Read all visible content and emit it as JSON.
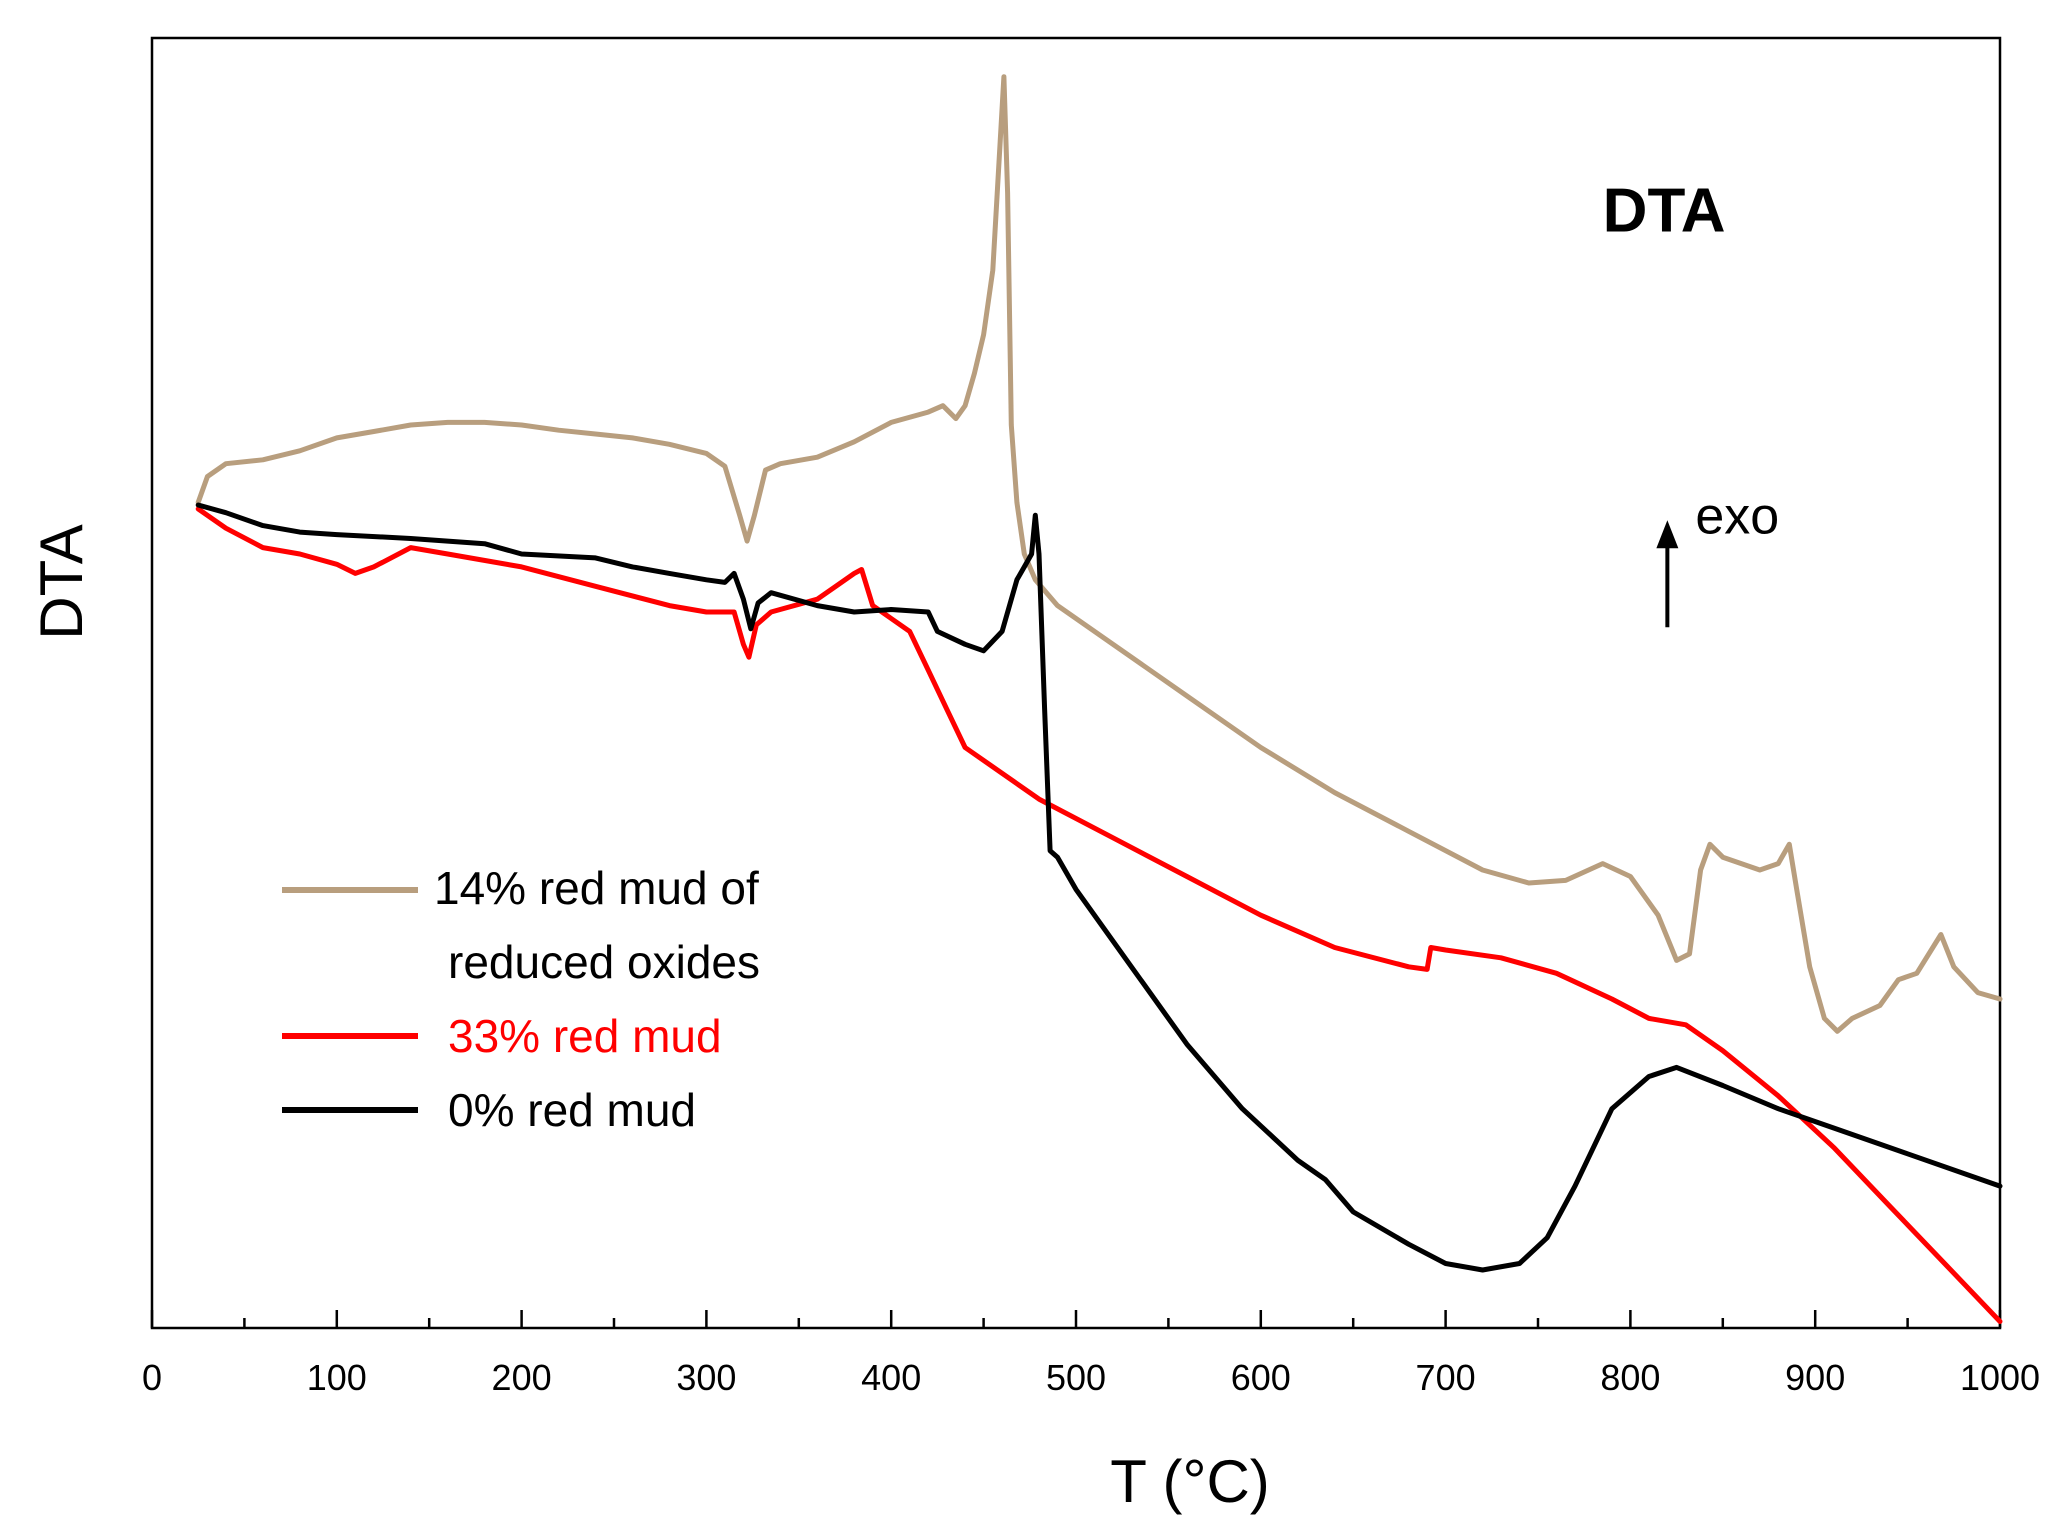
{
  "chart_data": {
    "type": "line",
    "title": "",
    "xlabel": "T (°C)",
    "ylabel": "DTA",
    "xlim": [
      0,
      1000
    ],
    "ylim": [
      0,
      100
    ],
    "x_ticks": [
      "0",
      "100",
      "200",
      "300",
      "400",
      "500",
      "600",
      "700",
      "800",
      "900",
      "1000"
    ],
    "y_ticks_shown": false,
    "grid": false,
    "legend_position": "bottom-left",
    "annotations": [
      {
        "text": "DTA",
        "x": 785,
        "y": 85
      },
      {
        "text": "exo",
        "x": 820,
        "y": 63,
        "arrow": "up"
      }
    ],
    "series": [
      {
        "name": "14% red mud of reduced oxides",
        "color": "#b89e7e",
        "points": [
          [
            25,
            64
          ],
          [
            30,
            66
          ],
          [
            40,
            67
          ],
          [
            60,
            67.3
          ],
          [
            80,
            68
          ],
          [
            100,
            69
          ],
          [
            120,
            69.5
          ],
          [
            140,
            70
          ],
          [
            160,
            70.2
          ],
          [
            180,
            70.2
          ],
          [
            200,
            70
          ],
          [
            220,
            69.6
          ],
          [
            240,
            69.3
          ],
          [
            260,
            69
          ],
          [
            280,
            68.5
          ],
          [
            300,
            67.8
          ],
          [
            310,
            66.8
          ],
          [
            318,
            63
          ],
          [
            322,
            61
          ],
          [
            326,
            63
          ],
          [
            332,
            66.5
          ],
          [
            340,
            67
          ],
          [
            360,
            67.5
          ],
          [
            380,
            68.7
          ],
          [
            400,
            70.2
          ],
          [
            420,
            71
          ],
          [
            428,
            71.5
          ],
          [
            435,
            70.5
          ],
          [
            440,
            71.5
          ],
          [
            445,
            74
          ],
          [
            450,
            77
          ],
          [
            455,
            82
          ],
          [
            459,
            92
          ],
          [
            461,
            97
          ],
          [
            463,
            88
          ],
          [
            465,
            70
          ],
          [
            468,
            64
          ],
          [
            472,
            60
          ],
          [
            478,
            58
          ],
          [
            490,
            56
          ],
          [
            520,
            53
          ],
          [
            560,
            49
          ],
          [
            600,
            45
          ],
          [
            640,
            41.5
          ],
          [
            680,
            38.5
          ],
          [
            720,
            35.5
          ],
          [
            745,
            34.5
          ],
          [
            765,
            34.7
          ],
          [
            785,
            36
          ],
          [
            800,
            35
          ],
          [
            815,
            32
          ],
          [
            825,
            28.5
          ],
          [
            832,
            29
          ],
          [
            838,
            35.5
          ],
          [
            843,
            37.5
          ],
          [
            850,
            36.5
          ],
          [
            870,
            35.5
          ],
          [
            880,
            36
          ],
          [
            886,
            37.5
          ],
          [
            890,
            34
          ],
          [
            897,
            28
          ],
          [
            905,
            24
          ],
          [
            912,
            23
          ],
          [
            920,
            24
          ],
          [
            935,
            25
          ],
          [
            945,
            27
          ],
          [
            955,
            27.5
          ],
          [
            968,
            30.5
          ],
          [
            975,
            28
          ],
          [
            988,
            26
          ],
          [
            1000,
            25.5
          ]
        ]
      },
      {
        "name": "33% red mud",
        "color": "#ff0000",
        "points": [
          [
            25,
            63.5
          ],
          [
            40,
            62
          ],
          [
            60,
            60.5
          ],
          [
            80,
            60
          ],
          [
            100,
            59.2
          ],
          [
            110,
            58.5
          ],
          [
            120,
            59
          ],
          [
            140,
            60.5
          ],
          [
            160,
            60
          ],
          [
            200,
            59
          ],
          [
            240,
            57.5
          ],
          [
            280,
            56
          ],
          [
            300,
            55.5
          ],
          [
            315,
            55.5
          ],
          [
            320,
            53
          ],
          [
            323,
            52
          ],
          [
            327,
            54.5
          ],
          [
            335,
            55.5
          ],
          [
            360,
            56.5
          ],
          [
            370,
            57.5
          ],
          [
            380,
            58.5
          ],
          [
            384,
            58.8
          ],
          [
            390,
            56
          ],
          [
            400,
            55
          ],
          [
            410,
            54
          ],
          [
            420,
            51
          ],
          [
            430,
            48
          ],
          [
            440,
            45
          ],
          [
            460,
            43
          ],
          [
            480,
            41
          ],
          [
            520,
            38
          ],
          [
            560,
            35
          ],
          [
            600,
            32
          ],
          [
            640,
            29.5
          ],
          [
            680,
            28
          ],
          [
            690,
            27.8
          ],
          [
            692,
            29.5
          ],
          [
            700,
            29.3
          ],
          [
            730,
            28.7
          ],
          [
            760,
            27.5
          ],
          [
            790,
            25.5
          ],
          [
            810,
            24
          ],
          [
            830,
            23.5
          ],
          [
            850,
            21.5
          ],
          [
            880,
            18
          ],
          [
            910,
            14
          ],
          [
            940,
            9.5
          ],
          [
            970,
            5
          ],
          [
            1000,
            0.5
          ]
        ]
      },
      {
        "name": "0% red mud",
        "color": "#000000",
        "points": [
          [
            25,
            63.8
          ],
          [
            40,
            63.2
          ],
          [
            60,
            62.2
          ],
          [
            80,
            61.7
          ],
          [
            100,
            61.5
          ],
          [
            140,
            61.2
          ],
          [
            180,
            60.8
          ],
          [
            200,
            60
          ],
          [
            240,
            59.7
          ],
          [
            260,
            59
          ],
          [
            280,
            58.5
          ],
          [
            300,
            58
          ],
          [
            310,
            57.8
          ],
          [
            315,
            58.5
          ],
          [
            320,
            56.5
          ],
          [
            324,
            54.2
          ],
          [
            328,
            56.2
          ],
          [
            335,
            57
          ],
          [
            360,
            56
          ],
          [
            380,
            55.5
          ],
          [
            400,
            55.7
          ],
          [
            420,
            55.5
          ],
          [
            425,
            54
          ],
          [
            440,
            53
          ],
          [
            450,
            52.5
          ],
          [
            460,
            54
          ],
          [
            468,
            58
          ],
          [
            472,
            59
          ],
          [
            476,
            60
          ],
          [
            478,
            63
          ],
          [
            480,
            60
          ],
          [
            483,
            48
          ],
          [
            486,
            37
          ],
          [
            490,
            36.5
          ],
          [
            500,
            34
          ],
          [
            530,
            28
          ],
          [
            560,
            22
          ],
          [
            590,
            17
          ],
          [
            620,
            13
          ],
          [
            635,
            11.5
          ],
          [
            650,
            9
          ],
          [
            680,
            6.5
          ],
          [
            700,
            5
          ],
          [
            720,
            4.5
          ],
          [
            740,
            5
          ],
          [
            755,
            7
          ],
          [
            770,
            11
          ],
          [
            790,
            17
          ],
          [
            810,
            19.5
          ],
          [
            825,
            20.2
          ],
          [
            850,
            18.8
          ],
          [
            880,
            17
          ],
          [
            910,
            15.5
          ],
          [
            950,
            13.5
          ],
          [
            1000,
            11
          ]
        ]
      }
    ],
    "legend": [
      {
        "label_lines": [
          "14% red mud of",
          "reduced oxides"
        ],
        "color": "#b89e7e",
        "text_color": "#000000"
      },
      {
        "label_lines": [
          "33% red mud"
        ],
        "color": "#ff0000",
        "text_color": "#ff0000"
      },
      {
        "label_lines": [
          "0% red mud"
        ],
        "color": "#000000",
        "text_color": "#000000"
      }
    ]
  }
}
